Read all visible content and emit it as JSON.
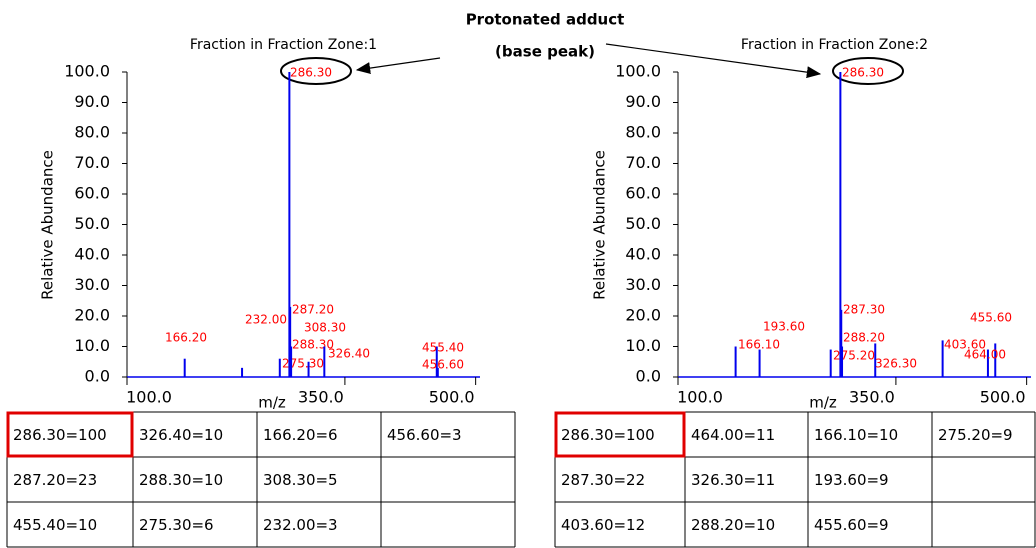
{
  "annotation": {
    "lines": [
      "Protonated adduct",
      "(base peak)"
    ]
  },
  "chart_data": [
    {
      "type": "bar",
      "title": "Fraction in Fraction Zone:1",
      "xlabel": "m/z",
      "ylabel": "Relative Abundance",
      "x": [
        166.2,
        232.0,
        275.3,
        286.3,
        287.2,
        288.3,
        308.3,
        326.4,
        455.4,
        456.6
      ],
      "x_labels": [
        "166.20",
        "232.00",
        "275.30",
        "286.30",
        "287.20",
        "288.30",
        "308.30",
        "326.40",
        "455.40",
        "456.60"
      ],
      "values": [
        6,
        3,
        6,
        100,
        23,
        10,
        5,
        10,
        10,
        3
      ],
      "color": "#0000ee",
      "label_color": "#ff0000",
      "xlim": [
        100,
        505
      ],
      "ylim": [
        0,
        100
      ],
      "xticks": [
        {
          "value": 100,
          "label": "100.0"
        },
        {
          "value": 350,
          "label": "350.0"
        },
        {
          "value": 500,
          "label": "500.0"
        }
      ],
      "yticks": [
        {
          "value": 0,
          "label": "0.0"
        },
        {
          "value": 10,
          "label": "10.0"
        },
        {
          "value": 20,
          "label": "20.0"
        },
        {
          "value": 30,
          "label": "30.0"
        },
        {
          "value": 40,
          "label": "40.0"
        },
        {
          "value": 50,
          "label": "50.0"
        },
        {
          "value": 60,
          "label": "60.0"
        },
        {
          "value": 70,
          "label": "70.0"
        },
        {
          "value": 80,
          "label": "80.0"
        },
        {
          "value": 90,
          "label": "90.0"
        },
        {
          "value": 100,
          "label": "100.0"
        }
      ],
      "table": [
        [
          "286.30=100",
          "326.40=10",
          "166.20=6",
          "456.60=3"
        ],
        [
          "287.20=23",
          "288.30=10",
          "308.30=5"
        ],
        [
          "455.40=10",
          "275.30=6",
          "232.00=3"
        ]
      ]
    },
    {
      "type": "bar",
      "title": "Fraction in Fraction Zone:2",
      "xlabel": "m/z",
      "ylabel": "Relative Abundance",
      "x": [
        166.1,
        193.6,
        275.2,
        286.3,
        287.3,
        288.2,
        326.3,
        403.6,
        455.6,
        464.0
      ],
      "x_labels": [
        "166.10",
        "193.60",
        "275.20",
        "286.30",
        "287.30",
        "288.20",
        "326.30",
        "403.60",
        "455.60",
        "464.00"
      ],
      "values": [
        10,
        9,
        9,
        100,
        22,
        10,
        11,
        12,
        9,
        11
      ],
      "color": "#0000ee",
      "label_color": "#ff0000",
      "xlim": [
        100,
        505
      ],
      "ylim": [
        0,
        100
      ],
      "xticks": [
        {
          "value": 100,
          "label": "100.0"
        },
        {
          "value": 350,
          "label": "350.0"
        },
        {
          "value": 500,
          "label": "500.0"
        }
      ],
      "yticks": [
        {
          "value": 0,
          "label": "0.0"
        },
        {
          "value": 10,
          "label": "10.0"
        },
        {
          "value": 20,
          "label": "20.0"
        },
        {
          "value": 30,
          "label": "30.0"
        },
        {
          "value": 40,
          "label": "40.0"
        },
        {
          "value": 50,
          "label": "50.0"
        },
        {
          "value": 60,
          "label": "60.0"
        },
        {
          "value": 70,
          "label": "70.0"
        },
        {
          "value": 80,
          "label": "80.0"
        },
        {
          "value": 90,
          "label": "90.0"
        },
        {
          "value": 100,
          "label": "100.0"
        }
      ],
      "table": [
        [
          "286.30=100",
          "464.00=11",
          "166.10=10",
          "275.20=9"
        ],
        [
          "287.30=22",
          "326.30=11",
          "193.60=9"
        ],
        [
          "403.60=12",
          "288.20=10",
          "455.60=9"
        ]
      ]
    }
  ]
}
